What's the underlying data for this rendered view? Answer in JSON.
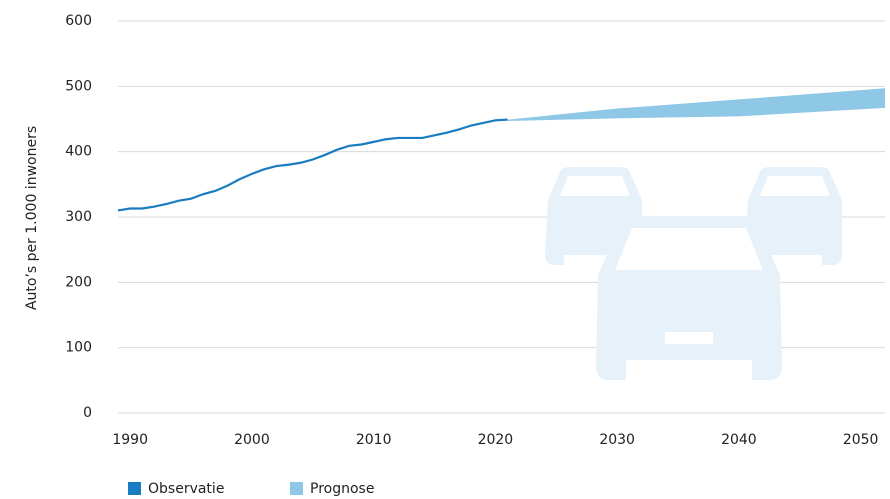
{
  "chart_data": {
    "type": "line",
    "y_label": "Auto’s per 1.000 inwoners",
    "xlim": [
      1989,
      2052
    ],
    "xticks": [
      1990,
      2000,
      2010,
      2020,
      2030,
      2040,
      2050
    ],
    "ylim": [
      0,
      600
    ],
    "yticks": [
      0,
      100,
      200,
      300,
      400,
      500,
      600
    ],
    "grid": true,
    "series": [
      {
        "name": "Observatie",
        "color": "#1a7cc1",
        "x": [
          1989,
          1990,
          1991,
          1992,
          1993,
          1994,
          1995,
          1996,
          1997,
          1998,
          1999,
          2000,
          2001,
          2002,
          2003,
          2004,
          2005,
          2006,
          2007,
          2008,
          2009,
          2010,
          2011,
          2012,
          2013,
          2014,
          2015,
          2016,
          2017,
          2018,
          2019,
          2020,
          2021
        ],
        "values": [
          310,
          313,
          313,
          316,
          320,
          325,
          328,
          335,
          340,
          348,
          358,
          366,
          373,
          378,
          380,
          383,
          388,
          395,
          403,
          409,
          411,
          415,
          419,
          421,
          421,
          421,
          425,
          429,
          434,
          440,
          444,
          448,
          449
        ]
      },
      {
        "name": "Prognose",
        "color": "#8fc8e6",
        "x": [
          2021,
          2030,
          2040,
          2052
        ],
        "upper": [
          449,
          466,
          480,
          497
        ],
        "lower": [
          447,
          451,
          454,
          467
        ]
      }
    ]
  }
}
